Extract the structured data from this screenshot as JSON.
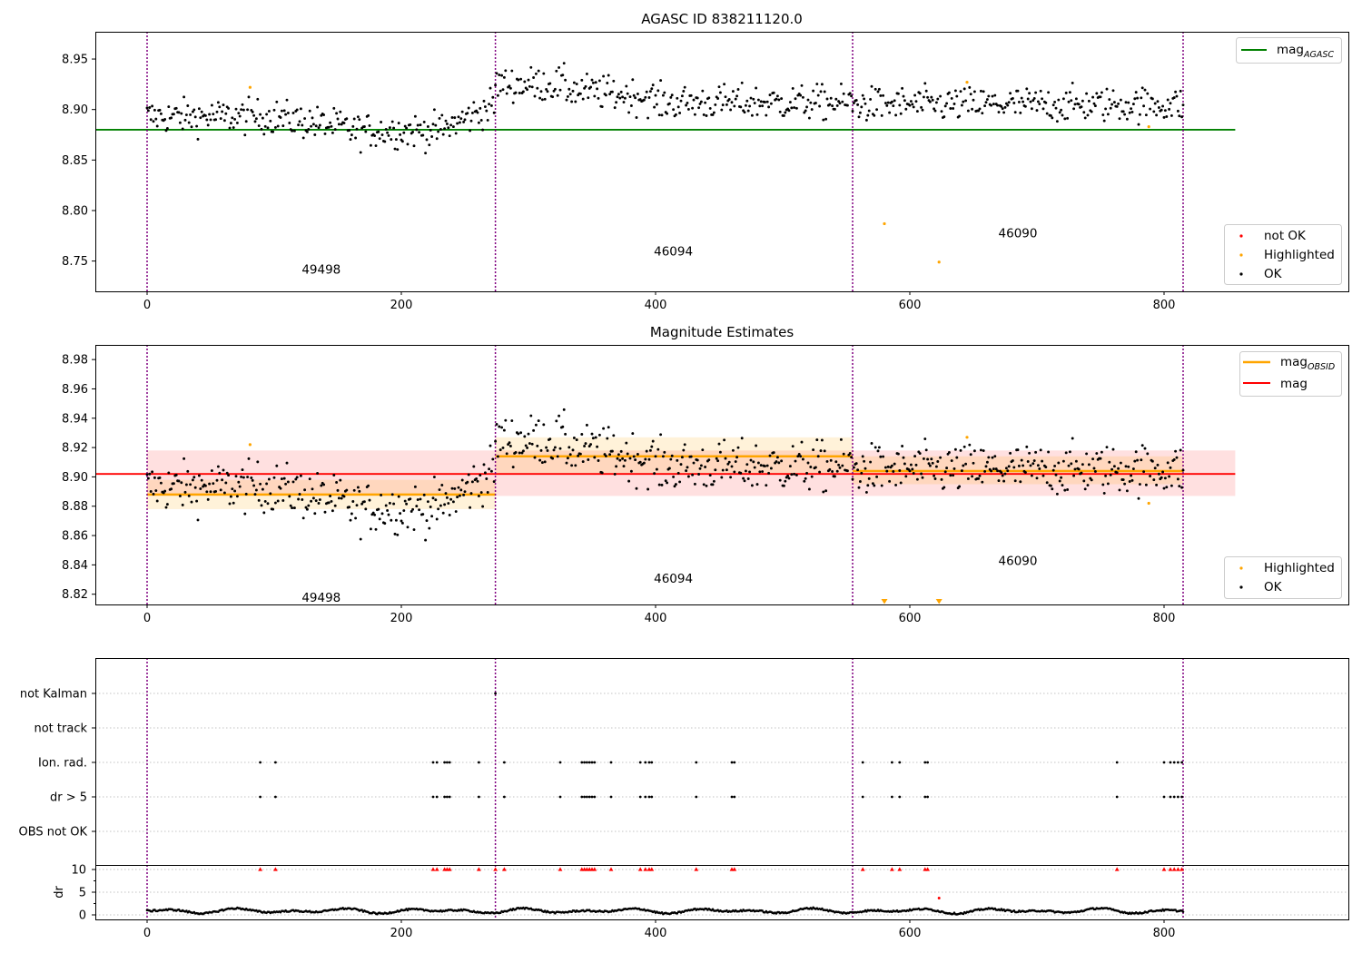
{
  "figure_title": "AGASC ID 838211120.0",
  "colors": {
    "points_ok": "#000000",
    "highlighted": "#ffa500",
    "not_ok": "#ff0000",
    "agasc_mag": "#008000",
    "obsid_mag": "#ffa500",
    "mean_mag": "#ff0000",
    "obs_boundary": "#800080",
    "grid": "#b0b0b0"
  },
  "chart_data": [
    {
      "type": "scatter",
      "panel": "top",
      "title": "AGASC ID 838211120.0",
      "xlim": [
        -40,
        950
      ],
      "ylim": [
        8.72,
        8.977
      ],
      "xticks": [
        "0",
        "200",
        "400",
        "600",
        "800"
      ],
      "yticks": [
        "8.75",
        "8.80",
        "8.85",
        "8.90",
        "8.95"
      ],
      "obs_boundaries": [
        0,
        274,
        555,
        815
      ],
      "obsid_labels": [
        {
          "text": "49498",
          "x": 137,
          "y": 8.742
        },
        {
          "text": "46094",
          "x": 414,
          "y": 8.76
        },
        {
          "text": "46090",
          "x": 685,
          "y": 8.778
        }
      ],
      "mag_agasc": 8.88,
      "mag_agasc_xrange": [
        -40,
        856
      ],
      "highlighted_points": [
        {
          "x": 81,
          "y": 8.922
        },
        {
          "x": 580,
          "y": 8.787
        },
        {
          "x": 623,
          "y": 8.749
        },
        {
          "x": 645,
          "y": 8.927
        },
        {
          "x": 788,
          "y": 8.883
        }
      ],
      "legend_upper": [
        {
          "label": "mag",
          "subscript": "AGASC",
          "marker": "line"
        }
      ],
      "legend_lower": [
        {
          "label": "not OK",
          "marker": "point"
        },
        {
          "label": "Highlighted",
          "marker": "point"
        },
        {
          "label": "OK",
          "marker": "point"
        }
      ],
      "legend_placement": [
        "top-right",
        "bottom-right"
      ],
      "grid": false
    },
    {
      "type": "scatter",
      "panel": "middle",
      "title": "Magnitude Estimates",
      "xlim": [
        -40,
        950
      ],
      "ylim": [
        8.813,
        8.99
      ],
      "xticks": [
        "0",
        "200",
        "400",
        "600",
        "800"
      ],
      "yticks": [
        "8.82",
        "8.84",
        "8.86",
        "8.88",
        "8.90",
        "8.92",
        "8.94",
        "8.96",
        "8.98"
      ],
      "obs_boundaries": [
        0,
        274,
        555,
        815
      ],
      "obsid_labels": [
        {
          "text": "49498",
          "x": 137,
          "y": 8.818
        },
        {
          "text": "46094",
          "x": 414,
          "y": 8.831
        },
        {
          "text": "46090",
          "x": 685,
          "y": 8.843
        }
      ],
      "mag_mean": 8.902,
      "mag_mean_band": [
        8.887,
        8.918
      ],
      "mag_mean_xrange": [
        -40,
        856
      ],
      "obsid_segments": [
        {
          "x0": 0,
          "x1": 274,
          "mag": 8.888,
          "band": [
            8.878,
            8.898
          ]
        },
        {
          "x0": 274,
          "x1": 555,
          "mag": 8.914,
          "band": [
            8.902,
            8.927
          ]
        },
        {
          "x0": 555,
          "x1": 815,
          "mag": 8.904,
          "band": [
            8.895,
            8.914
          ]
        }
      ],
      "highlighted_points": [
        {
          "x": 81,
          "y": 8.922
        },
        {
          "x": 645,
          "y": 8.927
        },
        {
          "x": 788,
          "y": 8.882
        }
      ],
      "below_axis_markers": [
        580,
        623
      ],
      "legend_upper": [
        {
          "label": "mag",
          "subscript": "OBSID",
          "marker": "line"
        },
        {
          "label": "mag",
          "marker": "line"
        }
      ],
      "legend_lower": [
        {
          "label": "Highlighted",
          "marker": "point"
        },
        {
          "label": "OK",
          "marker": "point"
        }
      ],
      "legend_placement": [
        "top-right",
        "bottom-right"
      ],
      "grid": false
    },
    {
      "type": "scatter",
      "panel": "flags",
      "xlim": [
        -40,
        950
      ],
      "categories": [
        "not Kalman",
        "not track",
        "Ion. rad.",
        "dr > 5",
        "OBS not OK"
      ],
      "flag_x": {
        "not Kalman": [
          274
        ],
        "not track": [],
        "Ion. rad.": [
          89,
          101,
          225,
          228,
          234,
          236,
          238,
          261,
          281,
          325,
          342,
          344,
          346,
          348,
          350,
          352,
          365,
          388,
          392,
          395,
          397,
          432,
          460,
          462,
          563,
          586,
          592,
          612,
          614,
          763,
          800,
          805,
          808,
          811,
          814
        ],
        "dr > 5": [
          89,
          101,
          225,
          228,
          234,
          236,
          238,
          261,
          281,
          325,
          342,
          344,
          346,
          348,
          350,
          352,
          365,
          388,
          392,
          395,
          397,
          432,
          460,
          462,
          563,
          586,
          592,
          612,
          614,
          763,
          800,
          805,
          808,
          811,
          814
        ],
        "OBS not OK": []
      },
      "grid": true
    },
    {
      "type": "scatter",
      "panel": "dr",
      "xlim": [
        -40,
        950
      ],
      "ylim": [
        -1,
        11
      ],
      "ylabel": "dr",
      "xticks": [
        "0",
        "200",
        "400",
        "600",
        "800"
      ],
      "yticks": [
        "0",
        "5",
        "10"
      ],
      "threshold": 10,
      "red_points_x": [
        89,
        101,
        225,
        228,
        234,
        236,
        238,
        261,
        274,
        281,
        325,
        342,
        344,
        346,
        348,
        350,
        352,
        365,
        388,
        392,
        395,
        397,
        432,
        460,
        462,
        563,
        586,
        592,
        612,
        614,
        763,
        800,
        805,
        808,
        811,
        814
      ],
      "red_extra": [
        {
          "x": 623,
          "y": 3.7
        }
      ],
      "grid": true
    }
  ]
}
